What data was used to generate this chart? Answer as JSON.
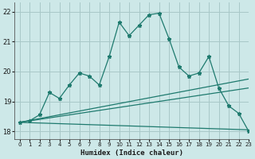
{
  "xlabel": "Humidex (Indice chaleur)",
  "xlim": [
    -0.5,
    23
  ],
  "ylim": [
    17.75,
    22.3
  ],
  "yticks": [
    18,
    19,
    20,
    21,
    22
  ],
  "xticks": [
    0,
    1,
    2,
    3,
    4,
    5,
    6,
    7,
    8,
    9,
    10,
    11,
    12,
    13,
    14,
    15,
    16,
    17,
    18,
    19,
    20,
    21,
    22,
    23
  ],
  "bg_color": "#cde8e8",
  "grid_color": "#a8c8c8",
  "line_color": "#1e7a6e",
  "line1_x": [
    0,
    1,
    2,
    3,
    4,
    5,
    6,
    7,
    8,
    9,
    10,
    11,
    12,
    13,
    14,
    15,
    16,
    17,
    18,
    19,
    20,
    21,
    22,
    23
  ],
  "line1_y": [
    18.3,
    18.35,
    18.55,
    19.3,
    19.1,
    19.55,
    19.95,
    19.85,
    19.55,
    20.5,
    21.65,
    21.2,
    21.55,
    21.9,
    21.95,
    21.1,
    20.15,
    19.85,
    19.95,
    20.5,
    19.45,
    18.85,
    18.6,
    18.0
  ],
  "line2_x": [
    0,
    23
  ],
  "line2_y": [
    18.3,
    19.45
  ],
  "line3_x": [
    0,
    23
  ],
  "line3_y": [
    18.3,
    19.75
  ],
  "line4_x": [
    0,
    23
  ],
  "line4_y": [
    18.3,
    18.05
  ]
}
